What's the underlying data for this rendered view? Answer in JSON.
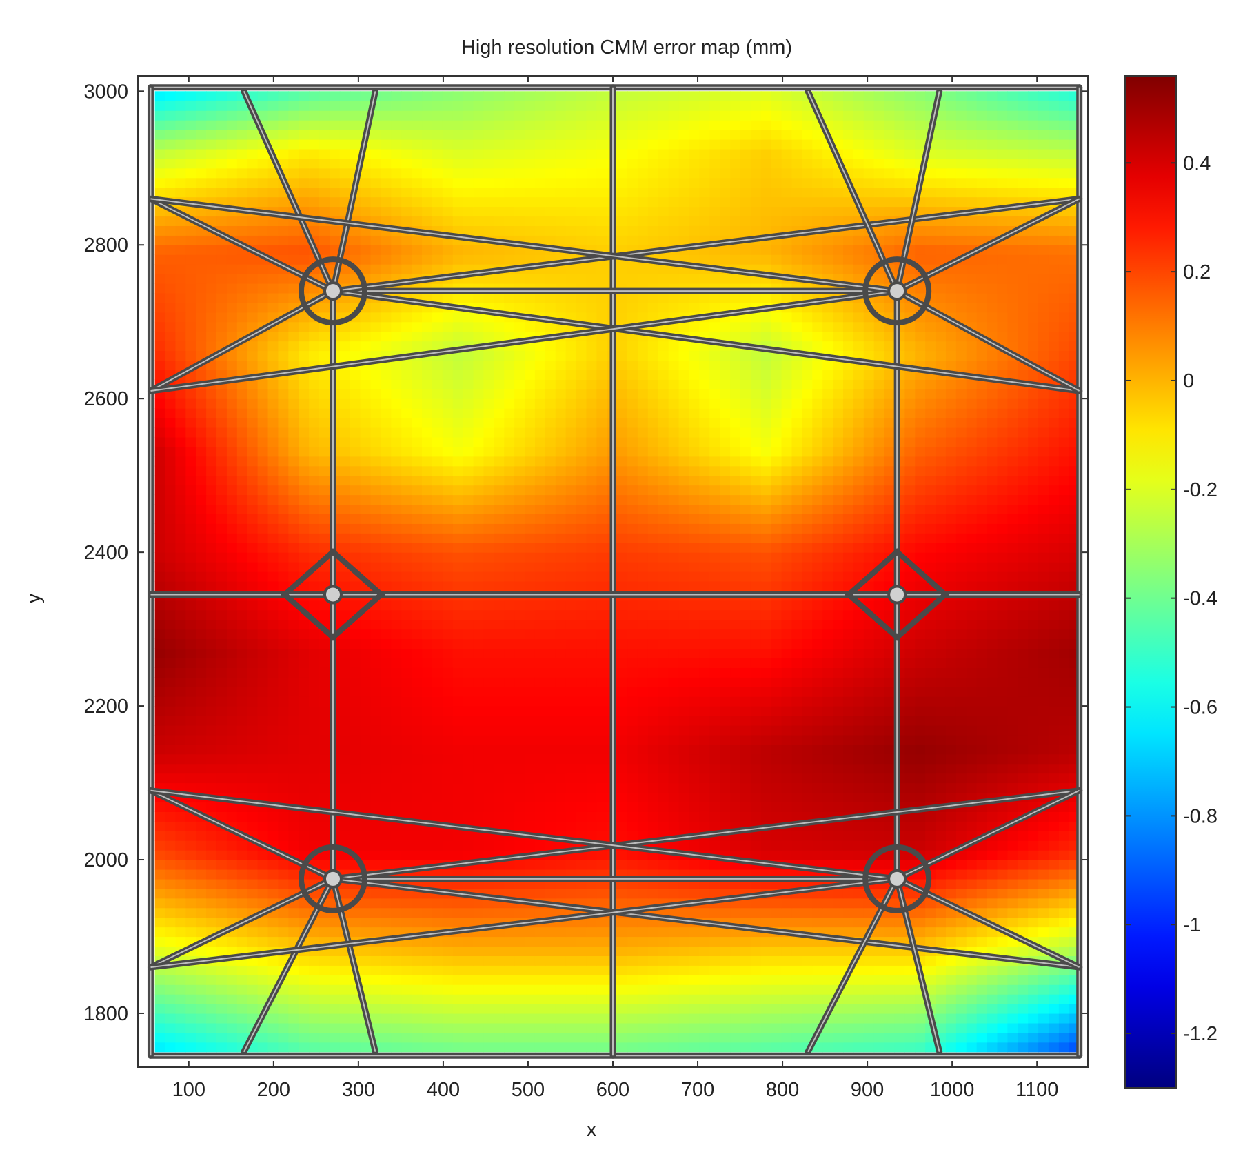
{
  "chart_data": {
    "type": "heatmap",
    "title": "High resolution CMM error map (mm)",
    "xlabel": "x",
    "ylabel": "y",
    "xlim": [
      40,
      1160
    ],
    "ylim": [
      1730,
      3020
    ],
    "xticks": [
      100,
      200,
      300,
      400,
      500,
      600,
      700,
      800,
      900,
      1000,
      1100
    ],
    "yticks": [
      1800,
      2000,
      2200,
      2400,
      2600,
      2800,
      3000
    ],
    "colorbar": {
      "colormap": "jet",
      "range": [
        -1.3,
        0.56
      ],
      "ticks": [
        -1.2,
        -1,
        -0.8,
        -0.6,
        -0.4,
        -0.2,
        0,
        0.2,
        0.4
      ]
    },
    "grid_x": [
      60,
      240,
      420,
      600,
      780,
      960,
      1150
    ],
    "grid_y": [
      1750,
      1880,
      2010,
      2140,
      2270,
      2400,
      2530,
      2660,
      2790,
      2920,
      3000
    ],
    "values": [
      [
        -0.65,
        -0.45,
        -0.4,
        -0.4,
        -0.45,
        -0.5,
        -0.95
      ],
      [
        -0.2,
        -0.05,
        0.0,
        0.0,
        -0.05,
        -0.05,
        -0.3
      ],
      [
        0.2,
        0.35,
        0.35,
        0.3,
        0.4,
        0.42,
        0.25
      ],
      [
        0.42,
        0.38,
        0.35,
        0.35,
        0.45,
        0.52,
        0.45
      ],
      [
        0.52,
        0.38,
        0.3,
        0.3,
        0.3,
        0.42,
        0.5
      ],
      [
        0.42,
        0.25,
        0.18,
        0.22,
        0.18,
        0.32,
        0.4
      ],
      [
        0.42,
        0.0,
        -0.15,
        0.05,
        -0.15,
        0.15,
        0.3
      ],
      [
        0.25,
        -0.1,
        -0.25,
        -0.05,
        -0.25,
        0.0,
        0.2
      ],
      [
        0.15,
        0.18,
        0.0,
        -0.05,
        0.0,
        0.15,
        0.12
      ],
      [
        -0.25,
        -0.1,
        -0.2,
        -0.15,
        -0.05,
        -0.2,
        -0.25
      ],
      [
        -0.65,
        -0.45,
        -0.35,
        -0.25,
        -0.2,
        -0.35,
        -0.55
      ]
    ]
  }
}
